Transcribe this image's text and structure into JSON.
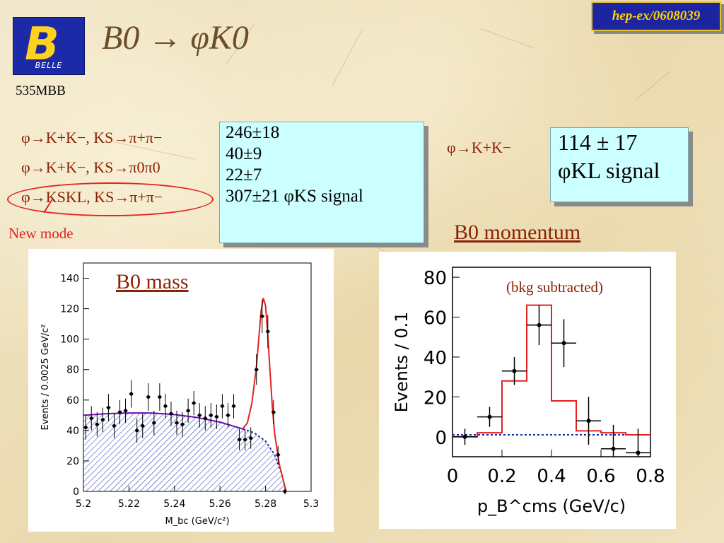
{
  "header": {
    "logo_text": "BELLE",
    "title": "B0 → φK0",
    "reference": "hep-ex/0608039",
    "luminosity": "535MBB"
  },
  "modes": [
    {
      "label": "φ→K+K−, KS→π+π−"
    },
    {
      "label": "φ→K+K−, KS→π0π0"
    },
    {
      "label": "φ→KSKL, KS→π+π−"
    }
  ],
  "new_mode_label": "New mode",
  "yields_box": {
    "lines": [
      "246±18",
      "40±9",
      "22±7",
      "307±21 φKS signal"
    ]
  },
  "kl_mode": "φ→K+K−",
  "kl_box": {
    "line1": "114 ± 17",
    "line2": "φKL signal"
  },
  "momentum_label": "B0 momentum",
  "mass_label": "B0 mass",
  "bkg_note": "(bkg subtracted)",
  "colors": {
    "text_brown": "#8a2206",
    "fit_red": "#e32222",
    "bkg_purple": "#6a0dad",
    "hatch_blue": "#1a2aa0",
    "box_cyan": "#ccffff"
  },
  "chart_data": [
    {
      "type": "scatter",
      "xlabel": "M_bc (GeV/c²)",
      "ylabel": "Events / 0.0025 GeV/c²",
      "xlim": [
        5.2,
        5.3
      ],
      "ylim": [
        0,
        150
      ],
      "xticks": [
        5.2,
        5.22,
        5.24,
        5.26,
        5.28,
        5.3
      ],
      "yticks": [
        0,
        20,
        40,
        60,
        80,
        100,
        120,
        140
      ],
      "points": [
        {
          "x": 5.201,
          "y": 42,
          "err": 8
        },
        {
          "x": 5.2035,
          "y": 48,
          "err": 8
        },
        {
          "x": 5.206,
          "y": 44,
          "err": 8
        },
        {
          "x": 5.2085,
          "y": 47,
          "err": 8
        },
        {
          "x": 5.211,
          "y": 55,
          "err": 9
        },
        {
          "x": 5.2135,
          "y": 43,
          "err": 8
        },
        {
          "x": 5.216,
          "y": 52,
          "err": 8
        },
        {
          "x": 5.2185,
          "y": 53,
          "err": 8
        },
        {
          "x": 5.221,
          "y": 64,
          "err": 9
        },
        {
          "x": 5.2235,
          "y": 40,
          "err": 8
        },
        {
          "x": 5.226,
          "y": 43,
          "err": 8
        },
        {
          "x": 5.2285,
          "y": 62,
          "err": 9
        },
        {
          "x": 5.231,
          "y": 45,
          "err": 8
        },
        {
          "x": 5.2335,
          "y": 62,
          "err": 9
        },
        {
          "x": 5.236,
          "y": 56,
          "err": 8
        },
        {
          "x": 5.2385,
          "y": 51,
          "err": 8
        },
        {
          "x": 5.241,
          "y": 45,
          "err": 8
        },
        {
          "x": 5.2435,
          "y": 44,
          "err": 8
        },
        {
          "x": 5.246,
          "y": 53,
          "err": 8
        },
        {
          "x": 5.2485,
          "y": 58,
          "err": 8
        },
        {
          "x": 5.251,
          "y": 50,
          "err": 8
        },
        {
          "x": 5.2535,
          "y": 48,
          "err": 8
        },
        {
          "x": 5.256,
          "y": 50,
          "err": 8
        },
        {
          "x": 5.2585,
          "y": 49,
          "err": 8
        },
        {
          "x": 5.261,
          "y": 56,
          "err": 8
        },
        {
          "x": 5.2635,
          "y": 50,
          "err": 8
        },
        {
          "x": 5.266,
          "y": 56,
          "err": 8
        },
        {
          "x": 5.2685,
          "y": 34,
          "err": 7
        },
        {
          "x": 5.271,
          "y": 34,
          "err": 7
        },
        {
          "x": 5.2735,
          "y": 35,
          "err": 7
        },
        {
          "x": 5.276,
          "y": 80,
          "err": 10
        },
        {
          "x": 5.2785,
          "y": 115,
          "err": 11
        },
        {
          "x": 5.281,
          "y": 105,
          "err": 11
        },
        {
          "x": 5.2835,
          "y": 52,
          "err": 8
        },
        {
          "x": 5.2855,
          "y": 24,
          "err": 6
        },
        {
          "x": 5.2885,
          "y": 0,
          "err": 2
        }
      ],
      "background_fit": {
        "x": [
          5.2,
          5.21,
          5.22,
          5.23,
          5.24,
          5.25,
          5.26,
          5.27,
          5.275,
          5.28,
          5.284,
          5.287,
          5.289
        ],
        "y": [
          50,
          51,
          51.5,
          51.5,
          50.5,
          48.5,
          45.5,
          41,
          38.5,
          33,
          24,
          12,
          0
        ]
      },
      "total_fit": {
        "x": [
          5.2,
          5.24,
          5.27,
          5.272,
          5.274,
          5.276,
          5.277,
          5.278,
          5.279,
          5.28,
          5.281,
          5.282,
          5.283,
          5.284,
          5.286,
          5.289
        ],
        "y": [
          50,
          50.5,
          41,
          45,
          58,
          82,
          100,
          118,
          127,
          122,
          102,
          78,
          55,
          38,
          18,
          0
        ]
      }
    },
    {
      "type": "bar",
      "xlabel": "p_B^cms (GeV/c)",
      "ylabel": "Events / 0.1",
      "xlim": [
        0,
        0.8
      ],
      "ylim": [
        -10,
        85
      ],
      "xticks": [
        0,
        0.2,
        0.4,
        0.6,
        0.8
      ],
      "yticks": [
        0,
        20,
        40,
        60,
        80
      ],
      "bins": [
        0,
        0.1,
        0.2,
        0.3,
        0.4,
        0.5,
        0.6,
        0.7,
        0.8
      ],
      "mc_histogram": [
        0,
        2,
        28,
        66,
        18,
        3,
        2,
        1
      ],
      "data_points": [
        {
          "x": 0.05,
          "y": 0,
          "err": 4
        },
        {
          "x": 0.15,
          "y": 10,
          "err": 5
        },
        {
          "x": 0.25,
          "y": 33,
          "err": 7
        },
        {
          "x": 0.35,
          "y": 56,
          "err": 10
        },
        {
          "x": 0.45,
          "y": 47,
          "err": 12
        },
        {
          "x": 0.55,
          "y": 8,
          "err": 12
        },
        {
          "x": 0.65,
          "y": -6,
          "err": 12
        },
        {
          "x": 0.75,
          "y": -8,
          "err": 12
        }
      ],
      "background_level": 1
    }
  ]
}
